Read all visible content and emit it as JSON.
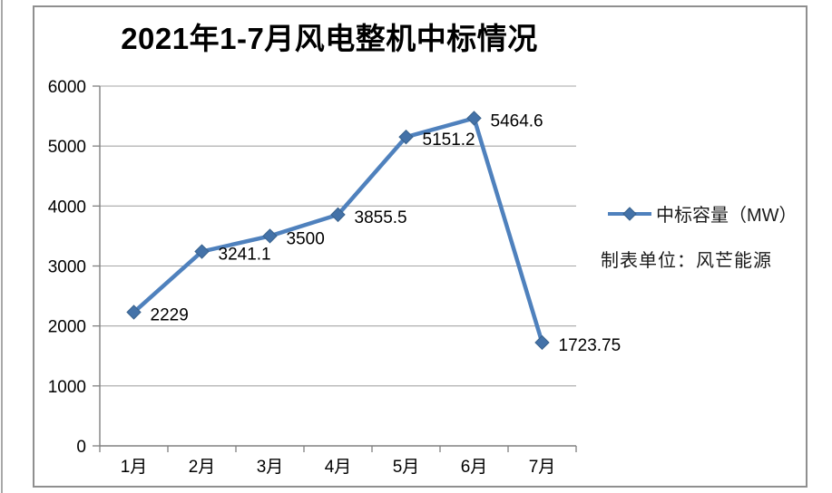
{
  "window": {
    "background": "#ffffff",
    "left_edge_color": "#a8a8a8",
    "frame_border_color": "#8f8f8f"
  },
  "chart_data": {
    "type": "line",
    "title": "2021年1-7月风电整机中标情况",
    "categories": [
      "1月",
      "2月",
      "3月",
      "4月",
      "5月",
      "6月",
      "7月"
    ],
    "series": [
      {
        "name": "中标容量（MW）",
        "values": [
          2229,
          3241.1,
          3500,
          3855.5,
          5151.2,
          5464.6,
          1723.75
        ]
      }
    ],
    "data_labels": [
      "2229",
      "3241.1",
      "3500",
      "3855.5",
      "5151.2",
      "5464.6",
      "1723.75"
    ],
    "y_ticks": [
      0,
      1000,
      2000,
      3000,
      4000,
      5000,
      6000
    ],
    "y_tick_labels": [
      "0",
      "1000",
      "2000",
      "3000",
      "4000",
      "5000",
      "6000"
    ],
    "ylim": [
      0,
      6000
    ],
    "xlabel": "",
    "ylabel": "",
    "grid": true,
    "legend_position": "right",
    "marker": "diamond",
    "note": "制表单位：风芒能源",
    "colors": {
      "line": "#4F81BD",
      "marker_fill": "#4472A8",
      "marker_stroke": "#38618C",
      "gridline": "#A6A6A6",
      "axis": "#808080",
      "label_text": "#000000"
    }
  }
}
